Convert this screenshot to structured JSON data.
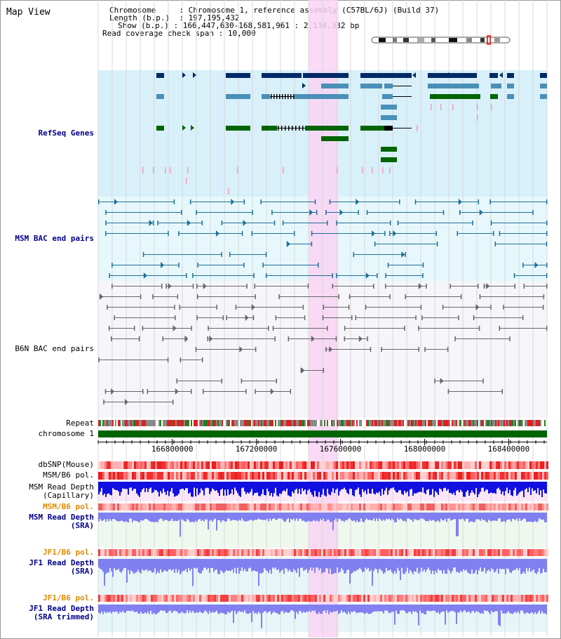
{
  "page": {
    "title": "Map View"
  },
  "info": {
    "chromosome_label": "Chromosome",
    "chromosome_value": "Chromosome 1, reference assembly (C57BL/6J) (Build 37)",
    "length_label": "Length (b.p.)",
    "length_value": "197,195,432",
    "show_label": "Show (b.p.)",
    "show_value": "166,447,630-168,581,961 : 2,134,332 bp",
    "coverage_label": "Read coverage check span",
    "coverage_value": "10,000"
  },
  "tracks": {
    "refseq": "RefSeq Genes",
    "msm_bac": "MSM BAC end pairs",
    "b6n_bac": "B6N BAC end pairs",
    "repeat": "Repeat",
    "chromosome": "chromosome 1",
    "dbsnp": "dbSNP(Mouse)",
    "msm_b6_pol_1": "MSM/B6 pol.",
    "msm_read_depth_cap_1": "MSM Read Depth",
    "msm_read_depth_cap_2": "(Capillary)",
    "msm_b6_pol_2": "MSM/B6 pol.",
    "msm_read_depth_sra_1": "MSM Read Depth",
    "msm_read_depth_sra_2": "(SRA)",
    "jf1_b6_pol_1": "JF1/B6 pol.",
    "jf1_read_depth_sra_1": "JF1 Read Depth",
    "jf1_read_depth_sra_2": "(SRA)",
    "jf1_b6_pol_2": "JF1/B6 pol.",
    "jf1_read_depth_trim_1": "JF1 Read Depth",
    "jf1_read_depth_trim_2": "(SRA trimmed)"
  },
  "axis": {
    "ticks": [
      {
        "label": "166800000",
        "value": 166800000
      },
      {
        "label": "167200000",
        "value": 167200000
      },
      {
        "label": "167600000",
        "value": 167600000
      },
      {
        "label": "168000000",
        "value": 168000000
      },
      {
        "label": "168400000",
        "value": 168400000
      }
    ],
    "range": [
      166447630,
      168581961
    ],
    "highlight": [
      167450000,
      167590000
    ]
  },
  "colors": {
    "refseq_bg": "#d7f0fa",
    "msm_bg": "#e6f8fb",
    "b6n_bg": "#f6f6fa",
    "highlight": "#f9d3f4",
    "refseq_dark": "#002a66",
    "refseq_mid": "#4a8fb8",
    "refseq_green": "#006400",
    "msm_line": "#1f6f96",
    "b6n_line": "#666666",
    "chromosome": "#006400",
    "depth_capillary": "#1010e0",
    "depth_sra": "#8080f0"
  }
}
